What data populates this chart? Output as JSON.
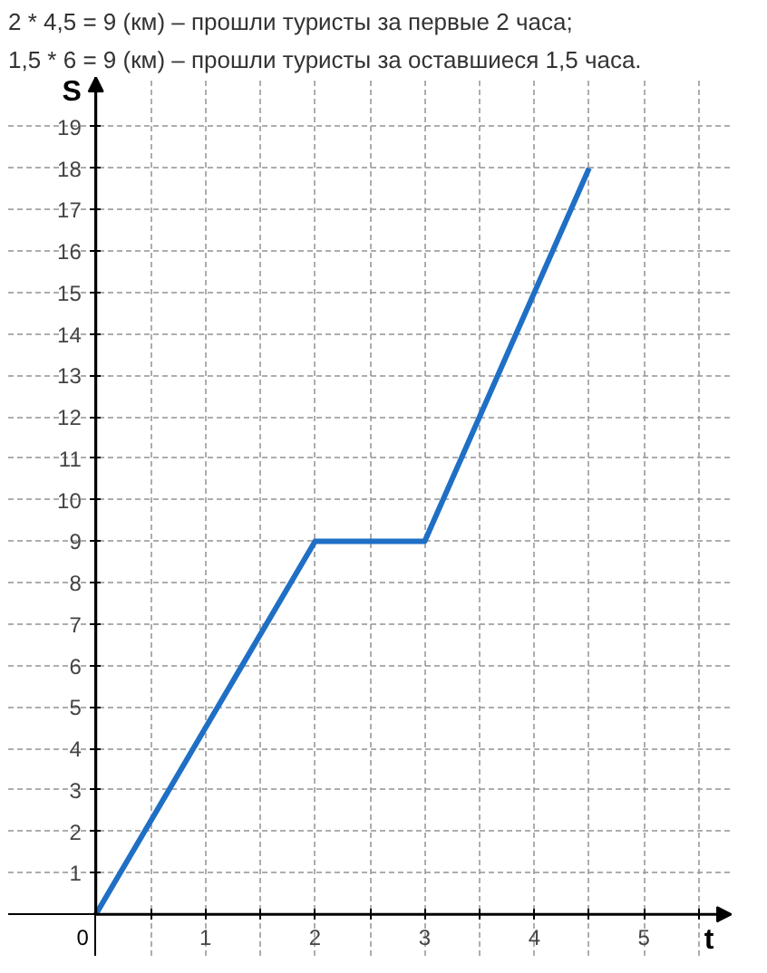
{
  "chart_data": {
    "type": "line",
    "annotations": [
      "2 * 4,5 = 9 (км) – прошли туристы за первые 2 часа;",
      "1,5 * 6 = 9 (км) – прошли туристы за оставшиеся 1,5 часа."
    ],
    "xlabel": "t",
    "ylabel": "S",
    "x": [
      0,
      2,
      3,
      4.5
    ],
    "series": [
      {
        "color": "#1f6fc5",
        "values": [
          0,
          9,
          9,
          18
        ]
      }
    ],
    "xlim": [
      -0.8,
      5.8
    ],
    "ylim": [
      -1,
      20.2
    ],
    "xticks": [
      0,
      {
        "value": 0.5,
        "label": null
      },
      1,
      {
        "value": 1.5,
        "label": null
      },
      2,
      {
        "value": 2.5,
        "label": null
      },
      3,
      {
        "value": 3.5,
        "label": null
      },
      4,
      {
        "value": 4.5,
        "label": null
      },
      5,
      {
        "value": 5.5,
        "label": null
      }
    ],
    "yticks": [
      1,
      2,
      3,
      4,
      5,
      6,
      7,
      8,
      9,
      10,
      11,
      12,
      13,
      14,
      15,
      16,
      17,
      18,
      19
    ],
    "grid": true,
    "line_style": "solid",
    "marker": "none"
  }
}
